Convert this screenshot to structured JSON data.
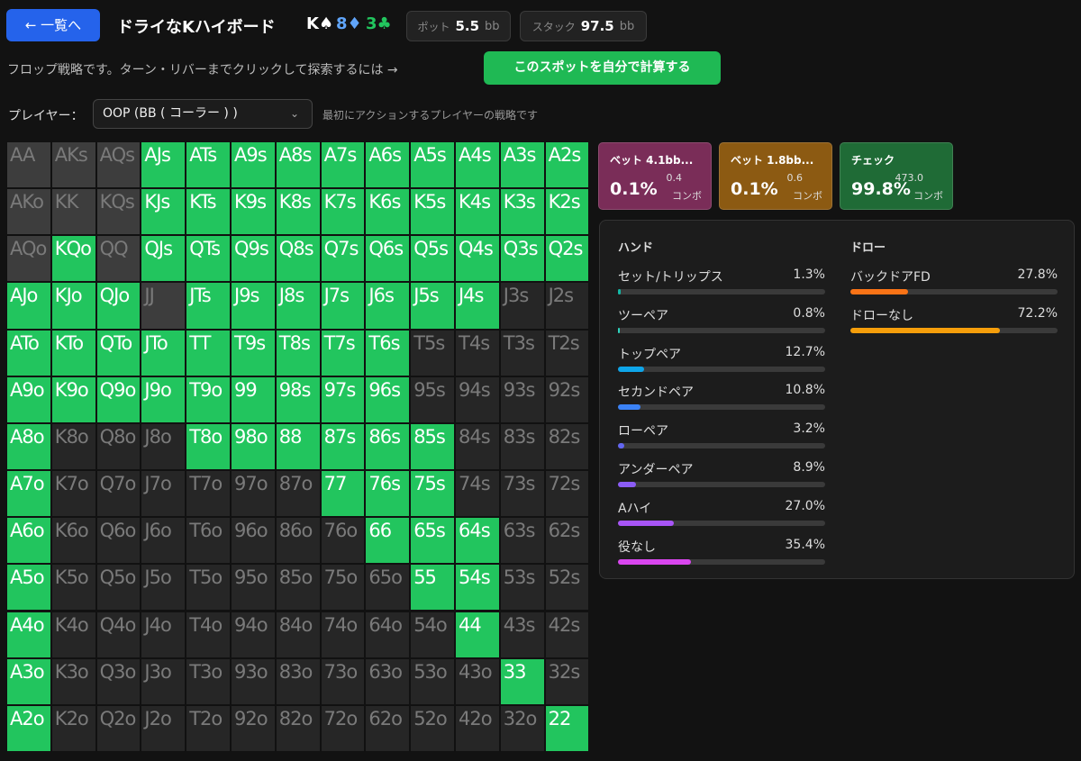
{
  "header": {
    "back_button": "← 一覧へ",
    "title": "ドライなKハイボード",
    "board": [
      {
        "rank": "K",
        "suit": "♠",
        "color": "#ffffff"
      },
      {
        "rank": "8",
        "suit": "♦",
        "color": "#60a5fa"
      },
      {
        "rank": "3",
        "suit": "♣",
        "color": "#22c55e"
      }
    ],
    "pot": {
      "label": "ポット",
      "value": "5.5",
      "unit": "bb"
    },
    "stack": {
      "label": "スタック",
      "value": "97.5",
      "unit": "bb"
    }
  },
  "info": {
    "text": "フロップ戦略です。ターン・リバーまでクリックして探索するには →",
    "button": "このスポットを自分で計算する"
  },
  "player": {
    "label": "プレイヤー：",
    "selected": "OOP (BB ( コーラー ) )",
    "note": "最初にアクションするプレイヤーの戦略です"
  },
  "grid": {
    "rows": [
      [
        "AA",
        "AKs",
        "AQs",
        "AJs",
        "ATs",
        "A9s",
        "A8s",
        "A7s",
        "A6s",
        "A5s",
        "A4s",
        "A3s",
        "A2s"
      ],
      [
        "AKo",
        "KK",
        "KQs",
        "KJs",
        "KTs",
        "K9s",
        "K8s",
        "K7s",
        "K6s",
        "K5s",
        "K4s",
        "K3s",
        "K2s"
      ],
      [
        "AQo",
        "KQo",
        "QQ",
        "QJs",
        "QTs",
        "Q9s",
        "Q8s",
        "Q7s",
        "Q6s",
        "Q5s",
        "Q4s",
        "Q3s",
        "Q2s"
      ],
      [
        "AJo",
        "KJo",
        "QJo",
        "JJ",
        "JTs",
        "J9s",
        "J8s",
        "J7s",
        "J6s",
        "J5s",
        "J4s",
        "J3s",
        "J2s"
      ],
      [
        "ATo",
        "KTo",
        "QTo",
        "JTo",
        "TT",
        "T9s",
        "T8s",
        "T7s",
        "T6s",
        "T5s",
        "T4s",
        "T3s",
        "T2s"
      ],
      [
        "A9o",
        "K9o",
        "Q9o",
        "J9o",
        "T9o",
        "99",
        "98s",
        "97s",
        "96s",
        "95s",
        "94s",
        "93s",
        "92s"
      ],
      [
        "A8o",
        "K8o",
        "Q8o",
        "J8o",
        "T8o",
        "98o",
        "88",
        "87s",
        "86s",
        "85s",
        "84s",
        "83s",
        "82s"
      ],
      [
        "A7o",
        "K7o",
        "Q7o",
        "J7o",
        "T7o",
        "97o",
        "87o",
        "77",
        "76s",
        "75s",
        "74s",
        "73s",
        "72s"
      ],
      [
        "A6o",
        "K6o",
        "Q6o",
        "J6o",
        "T6o",
        "96o",
        "86o",
        "76o",
        "66",
        "65s",
        "64s",
        "63s",
        "62s"
      ],
      [
        "A5o",
        "K5o",
        "Q5o",
        "J5o",
        "T5o",
        "95o",
        "85o",
        "75o",
        "65o",
        "55",
        "54s",
        "53s",
        "52s"
      ],
      [
        "A4o",
        "K4o",
        "Q4o",
        "J4o",
        "T4o",
        "94o",
        "84o",
        "74o",
        "64o",
        "54o",
        "44",
        "43s",
        "42s"
      ],
      [
        "A3o",
        "K3o",
        "Q3o",
        "J3o",
        "T3o",
        "93o",
        "83o",
        "73o",
        "63o",
        "53o",
        "43o",
        "33",
        "32s"
      ],
      [
        "A2o",
        "K2o",
        "Q2o",
        "J2o",
        "T2o",
        "92o",
        "82o",
        "72o",
        "62o",
        "52o",
        "42o",
        "32o",
        "22"
      ]
    ],
    "states": [
      "xxxgggggggggg",
      "xxxgggggggggg",
      "xgxgggggggggg",
      "gggxgggggggdd",
      "gggggggggdddd",
      "gggggggggdddd",
      "gdddggggggddd",
      "gddddddgggddd",
      "gdddddddgggdd",
      "gddddddddggdd",
      "gdddddddddgdd",
      "gddddddddddgd",
      "gdddddddddddg"
    ]
  },
  "actions": [
    {
      "name": "ベット 4.1bb...",
      "freq": "0.1%",
      "combos": "0.4",
      "unit": "コンボ",
      "color": "#7a2d58"
    },
    {
      "name": "ベット 1.8bb...",
      "freq": "0.1%",
      "combos": "0.6",
      "unit": "コンボ",
      "color": "#8c5a12"
    },
    {
      "name": "チェック",
      "freq": "99.8%",
      "combos": "473.0",
      "unit": "コンボ",
      "color": "#1f6b36"
    }
  ],
  "hands": {
    "title": "ハンド",
    "items": [
      {
        "name": "セット/トリップス",
        "value": 1.3,
        "value_label": "1.3%",
        "color": "#14b8a6"
      },
      {
        "name": "ツーペア",
        "value": 0.8,
        "value_label": "0.8%",
        "color": "#2dd4bf"
      },
      {
        "name": "トップペア",
        "value": 12.7,
        "value_label": "12.7%",
        "color": "#0ea5e9"
      },
      {
        "name": "セカンドペア",
        "value": 10.8,
        "value_label": "10.8%",
        "color": "#3b82f6"
      },
      {
        "name": "ローペア",
        "value": 3.2,
        "value_label": "3.2%",
        "color": "#6366f1"
      },
      {
        "name": "アンダーペア",
        "value": 8.9,
        "value_label": "8.9%",
        "color": "#8b5cf6"
      },
      {
        "name": "Aハイ",
        "value": 27.0,
        "value_label": "27.0%",
        "color": "#a855f7"
      },
      {
        "name": "役なし",
        "value": 35.4,
        "value_label": "35.4%",
        "color": "#d946ef"
      }
    ]
  },
  "draws": {
    "title": "ドロー",
    "items": [
      {
        "name": "バックドアFD",
        "value": 27.8,
        "value_label": "27.8%",
        "color": "#f97316"
      },
      {
        "name": "ドローなし",
        "value": 72.2,
        "value_label": "72.2%",
        "color": "#f59e0b"
      }
    ]
  }
}
